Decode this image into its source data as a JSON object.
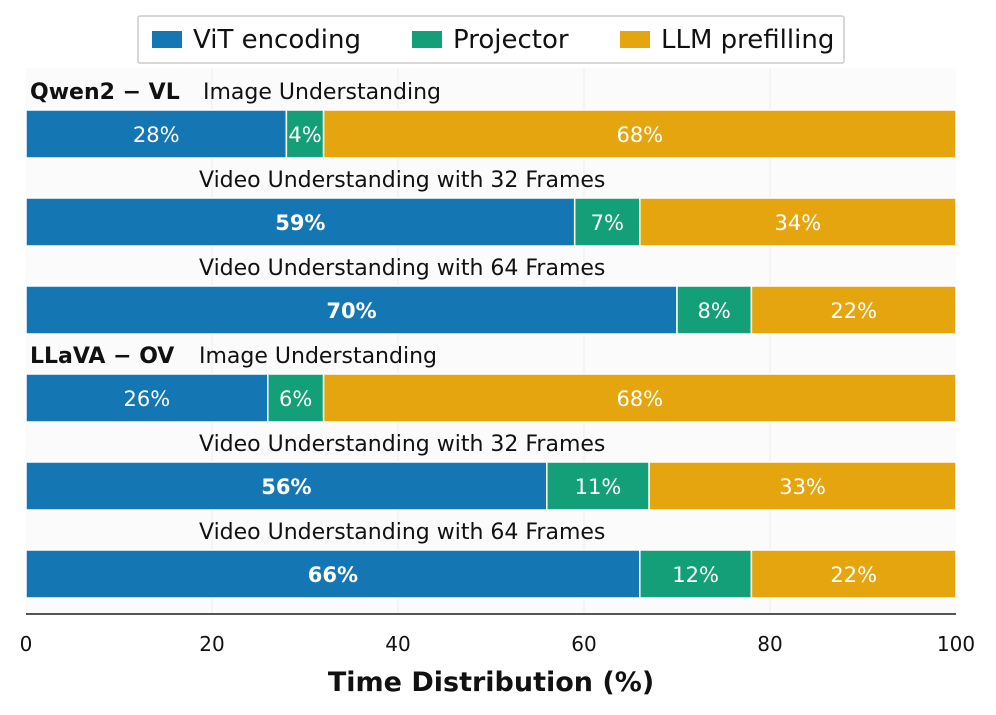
{
  "colors": {
    "vit": "#1477b3",
    "projector": "#13a078",
    "llm": "#e5a50e",
    "band": "#fbfbfb",
    "grid": "#ececec",
    "axis": "#555555"
  },
  "chart_data": {
    "type": "bar",
    "orientation": "horizontal",
    "stacked": true,
    "xlabel": "Time Distribution (%)",
    "xlim": [
      0,
      100
    ],
    "xticks": [
      0,
      20,
      40,
      60,
      80,
      100
    ],
    "grid": true,
    "legend": [
      "ViT encoding",
      "Projector",
      "LLM prefilling"
    ],
    "legend_position": "top-center",
    "groups": [
      {
        "model": "Qwen2 − VL",
        "rows": [
          {
            "task": "Image Understanding",
            "values": [
              28,
              4,
              68
            ],
            "labels": [
              "28%",
              "4%",
              "68%"
            ],
            "bold_first": false
          },
          {
            "task": "Video Understanding with 32 Frames",
            "values": [
              59,
              7,
              34
            ],
            "labels": [
              "59%",
              "7%",
              "34%"
            ],
            "bold_first": true
          },
          {
            "task": "Video Understanding with 64 Frames",
            "values": [
              70,
              8,
              22
            ],
            "labels": [
              "70%",
              "8%",
              "22%"
            ],
            "bold_first": true
          }
        ]
      },
      {
        "model": "LLaVA − OV",
        "rows": [
          {
            "task": "Image Understanding",
            "values": [
              26,
              6,
              68
            ],
            "labels": [
              "26%",
              "6%",
              "68%"
            ],
            "bold_first": false
          },
          {
            "task": "Video Understanding with 32 Frames",
            "values": [
              56,
              11,
              33
            ],
            "labels": [
              "56%",
              "11%",
              "33%"
            ],
            "bold_first": true
          },
          {
            "task": "Video Understanding with 64 Frames",
            "values": [
              66,
              12,
              22
            ],
            "labels": [
              "66%",
              "12%",
              "22%"
            ],
            "bold_first": true
          }
        ]
      }
    ]
  }
}
